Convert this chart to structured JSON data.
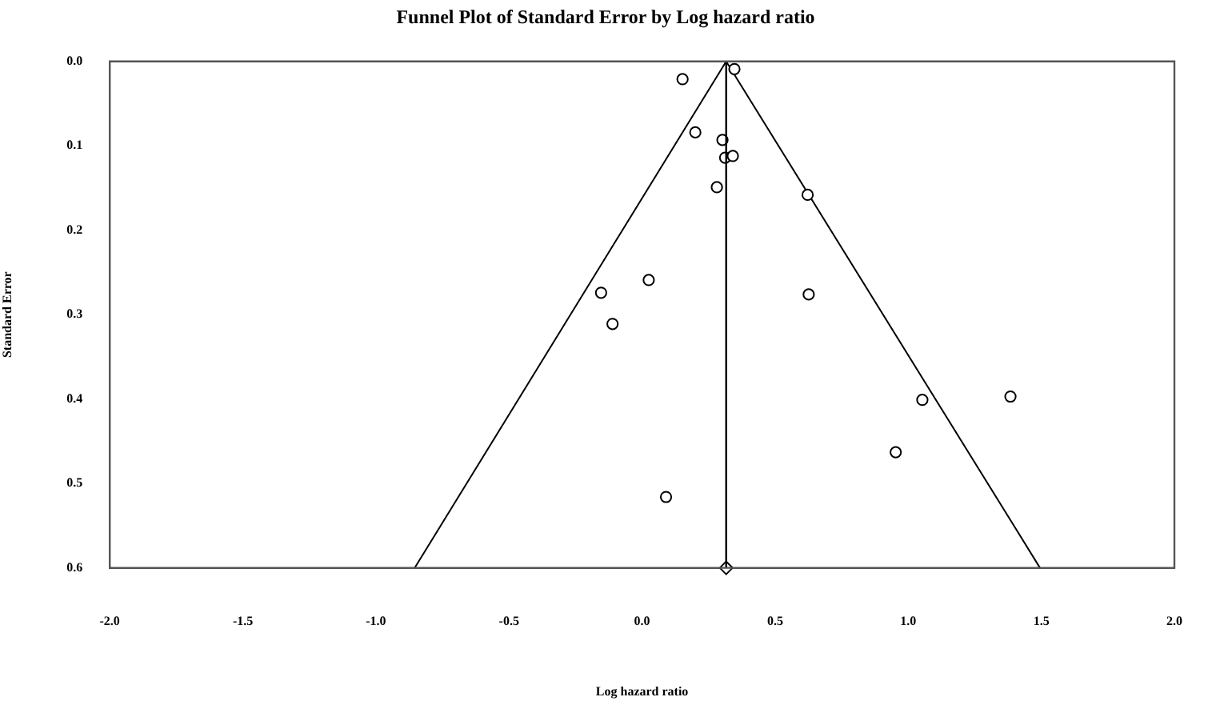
{
  "chart_data": {
    "type": "scatter",
    "title": "Funnel Plot of Standard Error by Log hazard ratio",
    "xlabel": "Log hazard ratio",
    "ylabel": "Standard Error",
    "series": [
      {
        "color": "#000000",
        "marker": "circle",
        "x": [
          0.347,
          0.152,
          0.2,
          0.302,
          0.312,
          0.341,
          0.281,
          0.622,
          0.025,
          -0.154,
          0.626,
          -0.111,
          1.053,
          1.384,
          0.953,
          0.09
        ],
        "values": [
          0.009,
          0.021,
          0.084,
          0.093,
          0.114,
          0.112,
          0.149,
          0.158,
          0.259,
          0.274,
          0.276,
          0.311,
          0.401,
          0.397,
          0.463,
          0.516
        ]
      },
      {
        "color": "#000000",
        "marker": "diamond",
        "x": [
          0.316
        ],
        "values": [
          0.6
        ]
      },
      {
        "type": "line",
        "color": "#000000",
        "marker": "none",
        "x": [
          -0.854,
          0.316,
          1.495
        ],
        "values": [
          0.6,
          0,
          0.6
        ]
      }
    ],
    "ref_lines": [
      {
        "axis": "x",
        "value": 0.316,
        "color": "#000000"
      }
    ],
    "xlim": [
      -2,
      2
    ],
    "xticks": [
      {
        "value": -2,
        "label": "-2.0"
      },
      {
        "value": -1.5,
        "label": "-1.5"
      },
      {
        "value": -1,
        "label": "-1.0"
      },
      {
        "value": -0.5,
        "label": "-0.5"
      },
      {
        "value": 0,
        "label": "0.0"
      },
      {
        "value": 0.5,
        "label": "0.5"
      },
      {
        "value": 1,
        "label": "1.0"
      },
      {
        "value": 1.5,
        "label": "1.5"
      },
      {
        "value": 2,
        "label": "2.0"
      }
    ],
    "ylim": [
      0.6,
      0
    ],
    "yticks": [
      {
        "value": 0,
        "label": "0.0"
      },
      {
        "value": 0.1,
        "label": "0.1"
      },
      {
        "value": 0.2,
        "label": "0.2"
      },
      {
        "value": 0.3,
        "label": "0.3"
      },
      {
        "value": 0.4,
        "label": "0.4"
      },
      {
        "value": 0.5,
        "label": "0.5"
      },
      {
        "value": 0.6,
        "label": "0.6"
      }
    ],
    "grid": false,
    "legend": false
  }
}
